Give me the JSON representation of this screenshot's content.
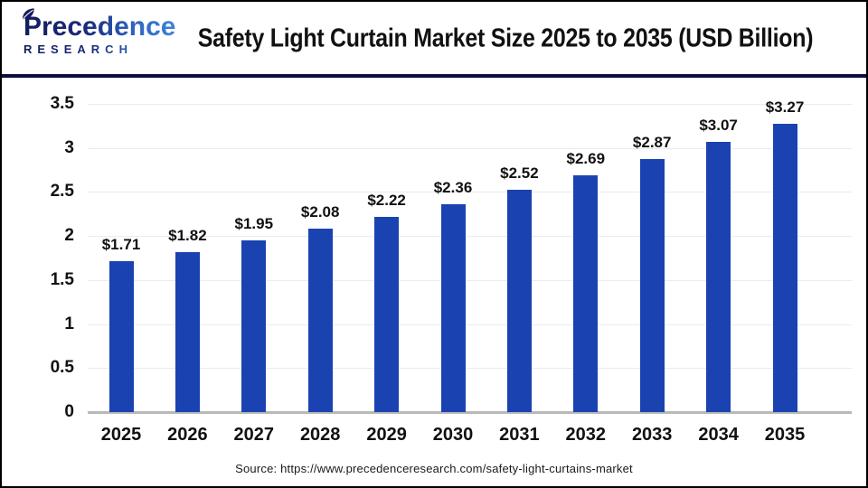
{
  "header": {
    "logo": {
      "line1": "Precedence",
      "line2": "RESEARCH"
    },
    "title": "Safety Light Curtain Market Size 2025 to 2035 (USD Billion)"
  },
  "chart_data": {
    "type": "bar",
    "title": "Safety Light Curtain Market Size 2025 to 2035 (USD Billion)",
    "categories": [
      "2025",
      "2026",
      "2027",
      "2028",
      "2029",
      "2030",
      "2031",
      "2032",
      "2033",
      "2034",
      "2035"
    ],
    "values": [
      1.71,
      1.82,
      1.95,
      2.08,
      2.22,
      2.36,
      2.52,
      2.69,
      2.87,
      3.07,
      3.27
    ],
    "value_labels": [
      "$1.71",
      "$1.82",
      "$1.95",
      "$2.08",
      "$2.22",
      "$2.36",
      "$2.52",
      "$2.69",
      "$2.87",
      "$3.07",
      "$3.27"
    ],
    "xlabel": "",
    "ylabel": "",
    "ylim": [
      0,
      3.5
    ],
    "yticks": [
      0,
      0.5,
      1,
      1.5,
      2,
      2.5,
      3,
      3.5
    ],
    "ytick_labels": [
      "0",
      "0.5",
      "1",
      "1.5",
      "2",
      "2.5",
      "3",
      "3.5"
    ],
    "grid": true,
    "legend": "none",
    "bar_color": "#1a43b1"
  },
  "footer": {
    "source": "Source: https://www.precedenceresearch.com/safety-light-curtains-market"
  },
  "colors": {
    "bar": "#1a43b1",
    "header_divider": "#0e0e3c",
    "gridline": "#ebebeb",
    "axis_line": "#b8b8b8",
    "logo_dark": "#131c5c",
    "logo_light": "#3f85da"
  }
}
